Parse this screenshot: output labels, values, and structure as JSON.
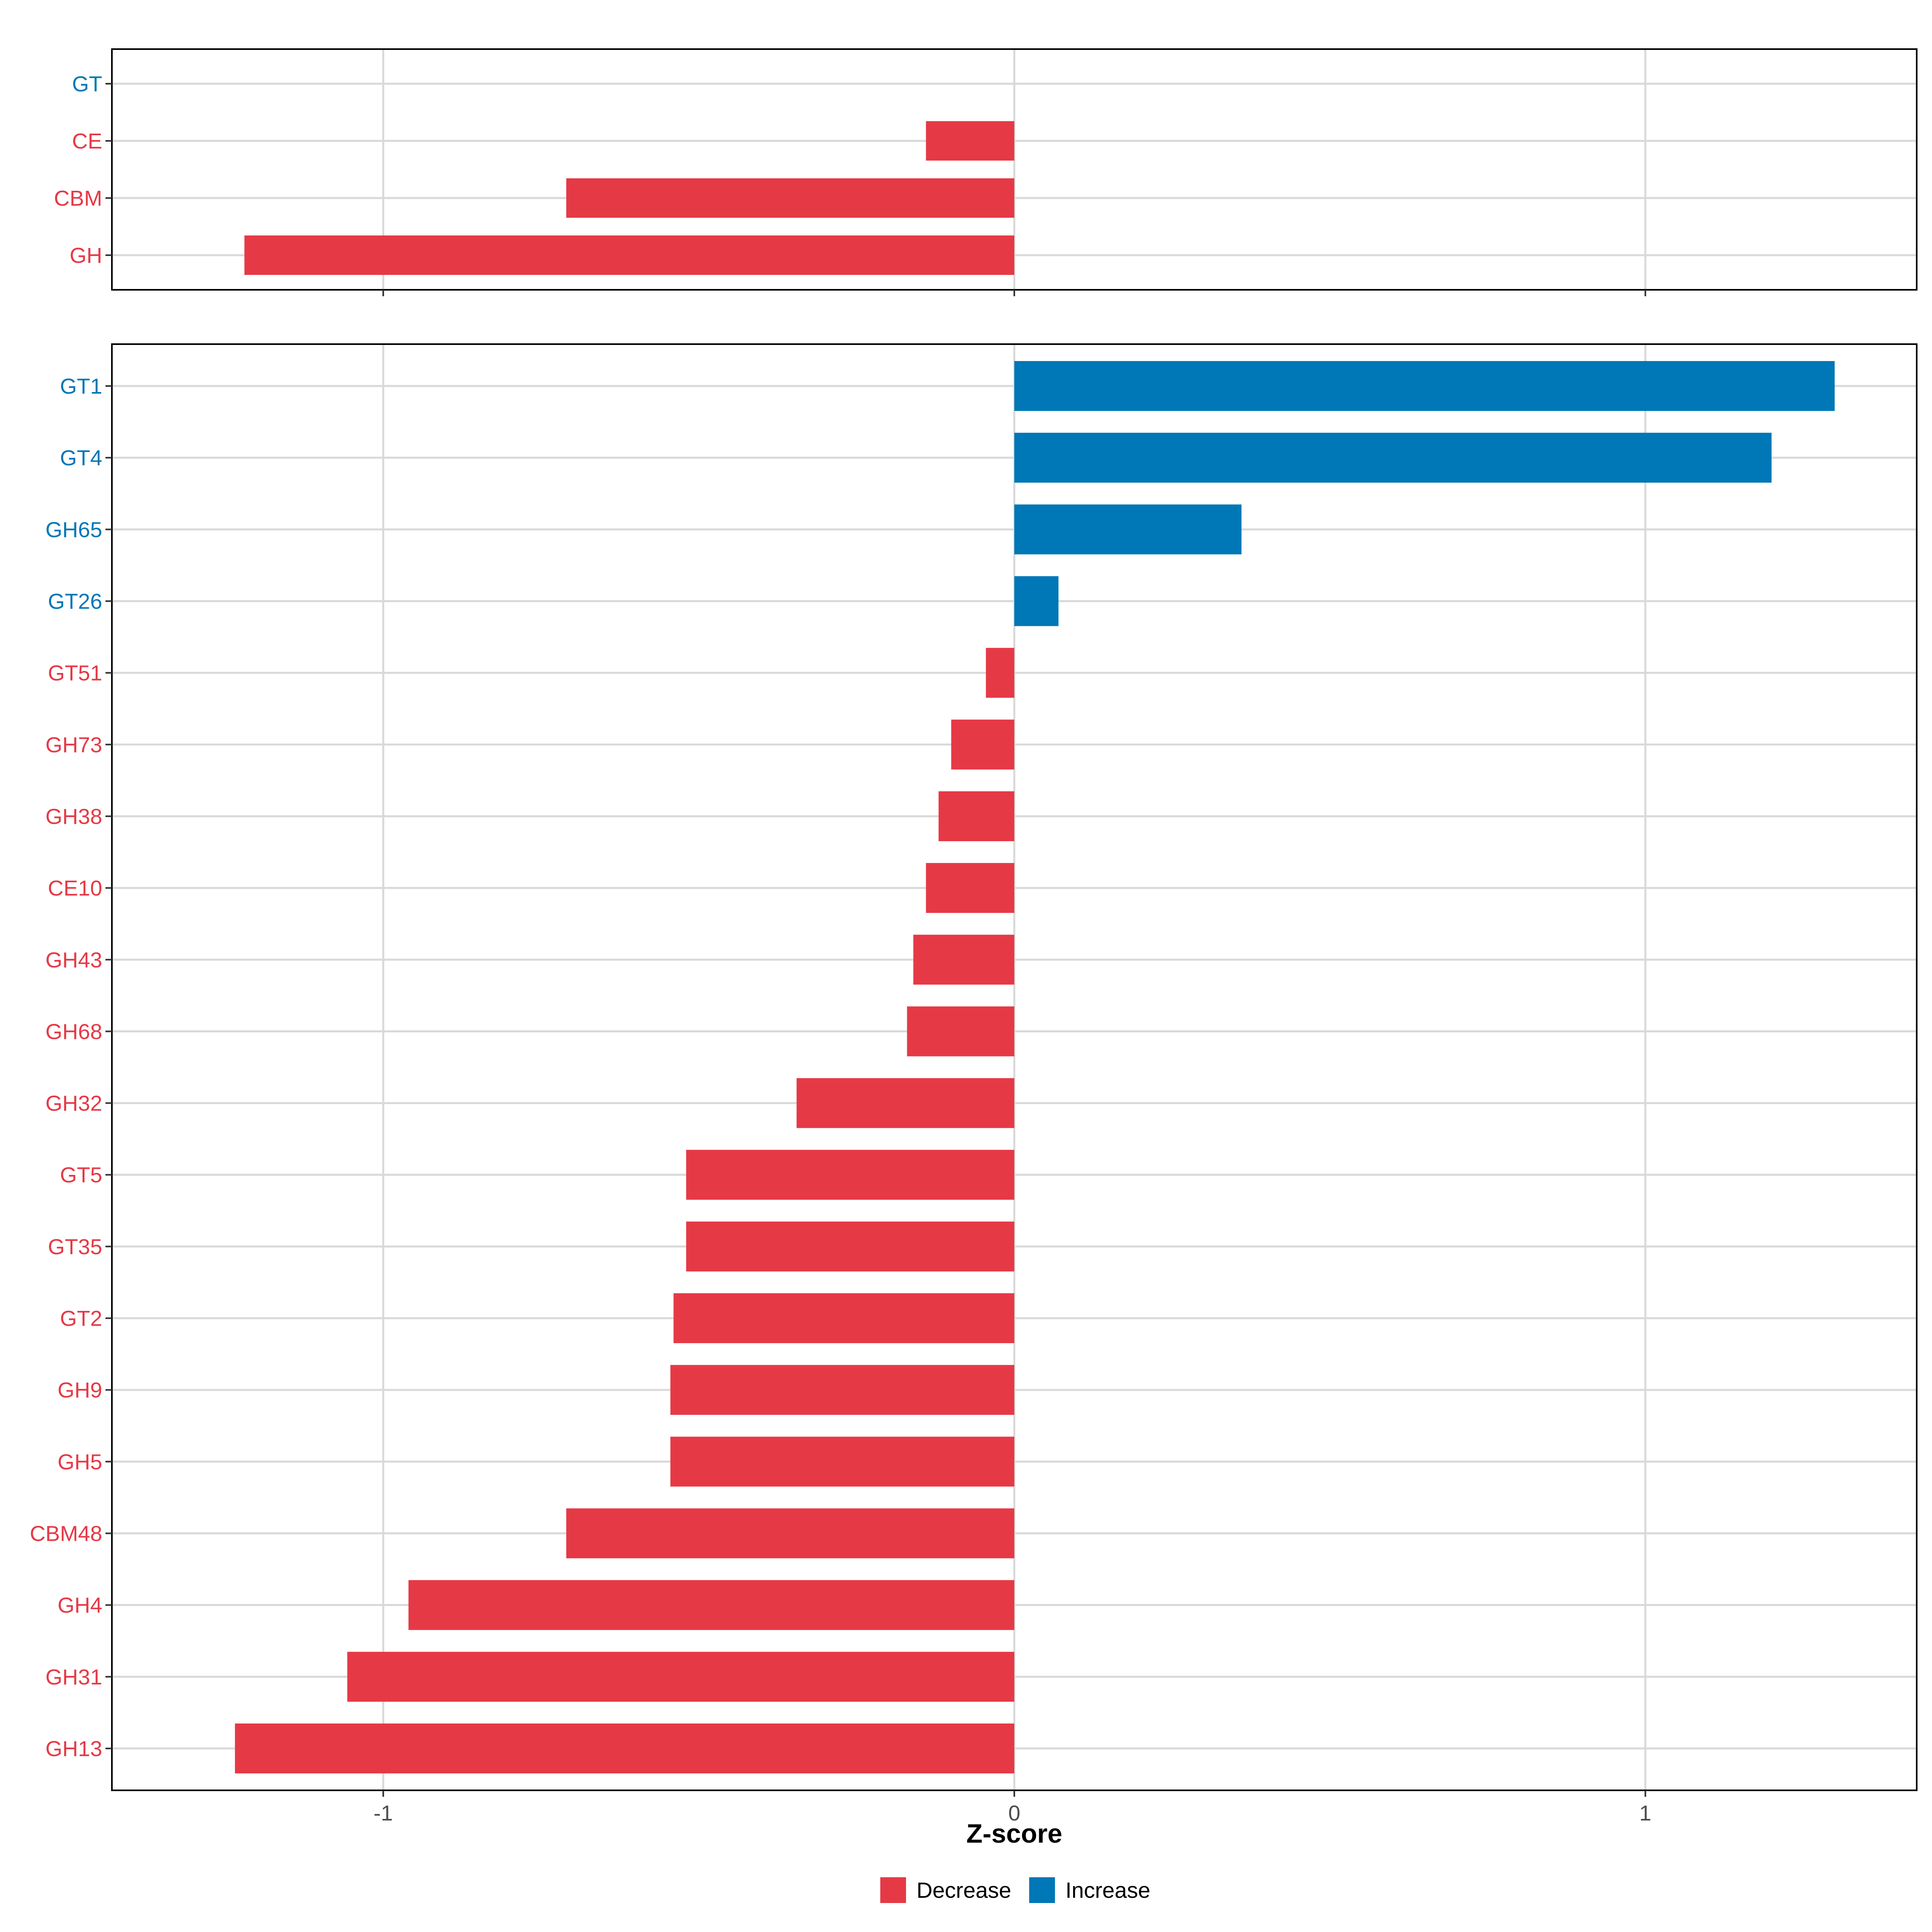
{
  "chart_data": [
    {
      "type": "bar",
      "orientation": "horizontal",
      "panel": "top",
      "categories": [
        "GT",
        "CE",
        "CBM",
        "GH"
      ],
      "values": [
        0,
        -0.14,
        -0.71,
        -1.22
      ],
      "directions": [
        "Increase",
        "Decrease",
        "Decrease",
        "Decrease"
      ],
      "xlim": [
        -1.43,
        1.43
      ],
      "xticks": [
        -1,
        0,
        1
      ],
      "grid": true
    },
    {
      "type": "bar",
      "orientation": "horizontal",
      "panel": "bottom",
      "categories": [
        "GT1",
        "GT4",
        "GH65",
        "GT26",
        "GT51",
        "GH73",
        "GH38",
        "CE10",
        "GH43",
        "GH68",
        "GH32",
        "GT5",
        "GT35",
        "GT2",
        "GH9",
        "GH5",
        "CBM48",
        "GH4",
        "GH31",
        "GH13"
      ],
      "values": [
        1.3,
        1.2,
        0.36,
        0.07,
        -0.045,
        -0.1,
        -0.12,
        -0.14,
        -0.16,
        -0.17,
        -0.345,
        -0.52,
        -0.52,
        -0.54,
        -0.545,
        -0.545,
        -0.71,
        -0.96,
        -1.057,
        -1.235
      ],
      "directions": [
        "Increase",
        "Increase",
        "Increase",
        "Increase",
        "Decrease",
        "Decrease",
        "Decrease",
        "Decrease",
        "Decrease",
        "Decrease",
        "Decrease",
        "Decrease",
        "Decrease",
        "Decrease",
        "Decrease",
        "Decrease",
        "Decrease",
        "Decrease",
        "Decrease",
        "Decrease"
      ],
      "xlim": [
        -1.43,
        1.43
      ],
      "xticks": [
        -1,
        0,
        1
      ],
      "xtick_labels": [
        "-1",
        "0",
        "1"
      ],
      "xlabel": "Z-score",
      "grid": true
    }
  ],
  "legend": {
    "placement": "bottom",
    "items": [
      {
        "label": "Decrease",
        "color": "#e63946"
      },
      {
        "label": "Increase",
        "color": "#0077b6"
      }
    ]
  },
  "colors": {
    "Decrease": "#e63946",
    "Increase": "#0077b6",
    "grid": "#d9d9d9",
    "tick_text": "#4d4d4d"
  }
}
